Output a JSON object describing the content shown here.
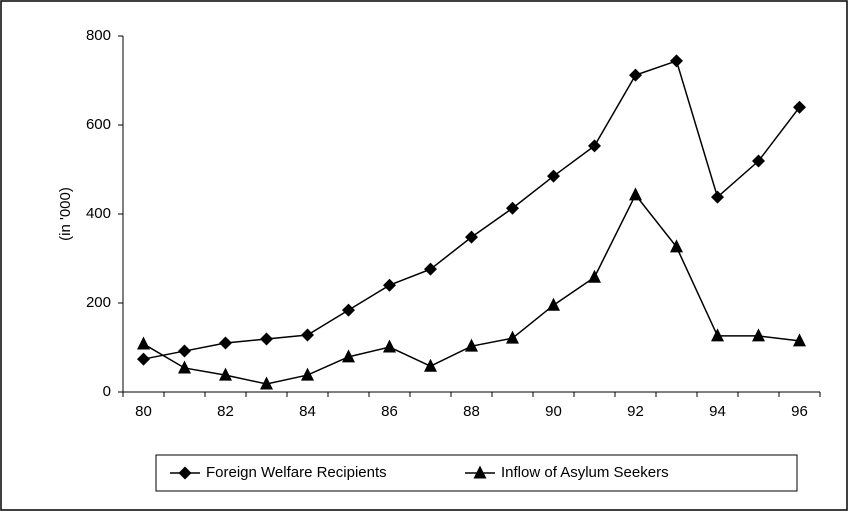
{
  "chart_data": {
    "type": "line",
    "y_label": "(in '000)",
    "categories": [
      "80",
      null,
      "82",
      null,
      "84",
      null,
      "86",
      null,
      "88",
      null,
      "90",
      null,
      "92",
      null,
      "94",
      null,
      "96"
    ],
    "series": [
      {
        "name": "Foreign Welfare Recipients",
        "color": "#000000",
        "marker": "diamond",
        "values": [
          74,
          92,
          110,
          119,
          128,
          184,
          240,
          276,
          348,
          413,
          485,
          553,
          712,
          744,
          438,
          519,
          640
        ]
      },
      {
        "name": "Inflow of Asylum Seekers",
        "color": "#000000",
        "marker": "triangle",
        "values": [
          108,
          54,
          38,
          18,
          38,
          79,
          101,
          58,
          103,
          121,
          195,
          258,
          443,
          326,
          126,
          126,
          115
        ]
      }
    ],
    "ylim": [
      0,
      800
    ],
    "yticks": [
      0,
      200,
      400,
      600,
      800
    ],
    "grid": false,
    "legend": "bottom"
  }
}
